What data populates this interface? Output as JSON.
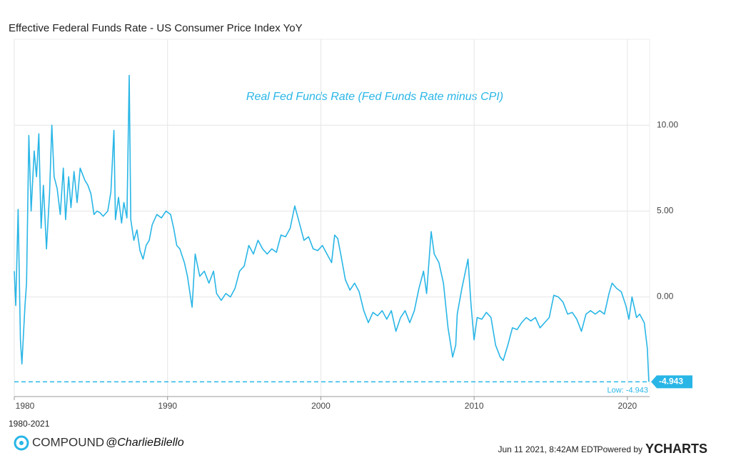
{
  "chart_data": {
    "type": "line",
    "title": "Effective Federal Funds Rate - US Consumer Price Index YoY",
    "annotation": "Real Fed Funds Rate (Fed Funds Rate minus CPI)",
    "period": "1980-2021",
    "color": "#29b6e6",
    "x": [
      1980.0,
      1980.1,
      1980.25,
      1980.4,
      1980.5,
      1980.7,
      1980.8,
      1980.95,
      1981.1,
      1981.3,
      1981.45,
      1981.6,
      1981.75,
      1981.9,
      1982.1,
      1982.3,
      1982.45,
      1982.6,
      1982.8,
      1983.0,
      1983.2,
      1983.35,
      1983.55,
      1983.7,
      1983.9,
      1984.1,
      1984.3,
      1984.6,
      1984.8,
      1985.0,
      1985.2,
      1985.4,
      1985.6,
      1985.8,
      1986.1,
      1986.3,
      1986.5,
      1986.6,
      1986.8,
      1987.0,
      1987.15,
      1987.35,
      1987.5,
      1987.6,
      1987.8,
      1988.0,
      1988.2,
      1988.4,
      1988.6,
      1988.8,
      1989.0,
      1989.3,
      1989.6,
      1989.9,
      1990.2,
      1990.4,
      1990.6,
      1990.8,
      1991.1,
      1991.3,
      1991.5,
      1991.6,
      1991.8,
      1992.1,
      1992.4,
      1992.7,
      1993.0,
      1993.2,
      1993.5,
      1993.8,
      1994.1,
      1994.4,
      1994.7,
      1995.0,
      1995.3,
      1995.6,
      1995.9,
      1996.2,
      1996.5,
      1996.8,
      1997.1,
      1997.4,
      1997.7,
      1998.0,
      1998.3,
      1998.6,
      1998.9,
      1999.2,
      1999.5,
      1999.8,
      2000.1,
      2000.4,
      2000.7,
      2000.9,
      2001.1,
      2001.3,
      2001.6,
      2001.9,
      2002.2,
      2002.5,
      2002.8,
      2003.1,
      2003.4,
      2003.7,
      2004.0,
      2004.3,
      2004.6,
      2004.9,
      2005.2,
      2005.5,
      2005.8,
      2006.1,
      2006.4,
      2006.7,
      2006.9,
      2007.2,
      2007.4,
      2007.7,
      2008.0,
      2008.3,
      2008.6,
      2008.8,
      2008.9,
      2009.2,
      2009.6,
      2009.8,
      2010.0,
      2010.2,
      2010.5,
      2010.8,
      2011.1,
      2011.4,
      2011.7,
      2011.9,
      2012.2,
      2012.5,
      2012.8,
      2013.1,
      2013.4,
      2013.7,
      2014.0,
      2014.3,
      2014.6,
      2014.9,
      2015.2,
      2015.5,
      2015.8,
      2016.1,
      2016.4,
      2016.7,
      2017.0,
      2017.3,
      2017.6,
      2017.9,
      2018.2,
      2018.5,
      2018.8,
      2019.0,
      2019.3,
      2019.6,
      2019.9,
      2020.1,
      2020.3,
      2020.6,
      2020.8,
      2021.1,
      2021.3,
      2021.4
    ],
    "values": [
      1.5,
      -0.5,
      5.1,
      -2.5,
      -3.9,
      -0.5,
      0.8,
      9.4,
      5.0,
      8.5,
      7.0,
      9.5,
      4.0,
      6.5,
      2.8,
      6.0,
      10.0,
      7.0,
      6.3,
      4.8,
      7.5,
      4.5,
      7.0,
      5.2,
      7.3,
      5.5,
      7.5,
      6.8,
      6.5,
      6.0,
      4.8,
      5.0,
      4.9,
      4.7,
      5.0,
      6.1,
      9.7,
      4.5,
      5.8,
      4.3,
      5.5,
      4.6,
      12.9,
      4.5,
      3.3,
      3.9,
      2.7,
      2.2,
      3.0,
      3.3,
      4.2,
      4.8,
      4.6,
      5.0,
      4.8,
      4.0,
      3.0,
      2.8,
      2.0,
      1.2,
      0.0,
      -0.6,
      2.5,
      1.2,
      1.5,
      0.8,
      1.5,
      0.2,
      -0.2,
      0.2,
      0.0,
      0.5,
      1.5,
      1.8,
      3.0,
      2.5,
      3.3,
      2.8,
      2.5,
      2.8,
      2.6,
      3.6,
      3.5,
      4.0,
      5.3,
      4.3,
      3.3,
      3.5,
      2.8,
      2.7,
      3.0,
      2.5,
      2.0,
      3.6,
      3.4,
      2.5,
      1.0,
      0.4,
      0.8,
      0.3,
      -0.8,
      -1.5,
      -0.9,
      -1.1,
      -0.8,
      -1.3,
      -0.8,
      -2.0,
      -1.2,
      -0.8,
      -1.5,
      -0.8,
      0.5,
      1.5,
      0.2,
      3.8,
      2.5,
      2.0,
      0.8,
      -1.8,
      -3.5,
      -2.8,
      -1.0,
      0.5,
      2.2,
      -0.5,
      -2.5,
      -1.2,
      -1.3,
      -0.9,
      -1.2,
      -2.8,
      -3.5,
      -3.7,
      -2.8,
      -1.8,
      -1.9,
      -1.5,
      -1.2,
      -1.4,
      -1.2,
      -1.8,
      -1.5,
      -1.2,
      0.1,
      0.0,
      -0.3,
      -1.0,
      -0.9,
      -1.3,
      -2.0,
      -1.0,
      -0.8,
      -1.0,
      -0.8,
      -1.0,
      0.2,
      0.8,
      0.5,
      0.3,
      -0.5,
      -1.3,
      0.0,
      -1.2,
      -1.0,
      -1.5,
      -3.0,
      -4.943
    ],
    "xlim": [
      1980,
      2021.45
    ],
    "xticks": [
      1980,
      1990,
      2000,
      2010,
      2020
    ],
    "ylim": [
      -5.8,
      15
    ],
    "yticks": [
      {
        "value": 10,
        "label": "10.00"
      },
      {
        "value": 5,
        "label": "5.00"
      },
      {
        "value": 0,
        "label": "0.00"
      }
    ],
    "low_line": {
      "value": -4.943,
      "label": "Low: -4.943"
    },
    "grid": true
  },
  "footer": {
    "brand": "COMPOUND",
    "handle": "@CharlieBilello",
    "date": "Jun 11 2021, 8:42AM EDT.",
    "powered": "Powered by",
    "ycharts": "YCHARTS"
  }
}
